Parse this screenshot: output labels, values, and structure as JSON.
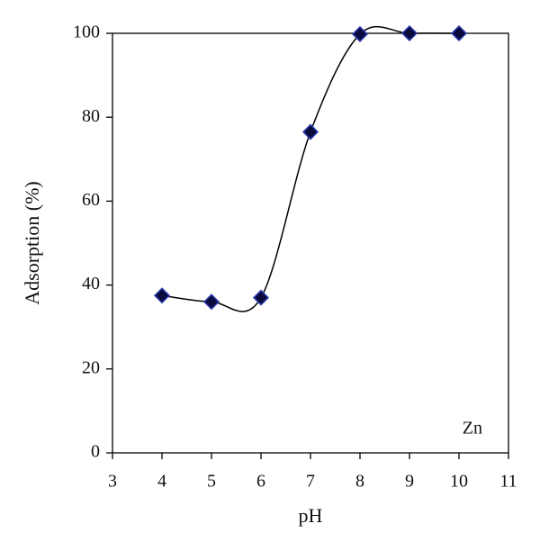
{
  "chart_data": {
    "type": "scatter",
    "x_label": "pH",
    "y_label": "Adsorption (%)",
    "annotation": "Zn",
    "x": [
      4,
      5,
      6,
      7,
      8,
      9,
      10
    ],
    "series": [
      {
        "name": "Zn",
        "color": "#0a0a3c",
        "values": [
          37.5,
          36,
          37,
          76.5,
          99.8,
          100,
          100
        ]
      }
    ],
    "xlim": [
      3,
      11
    ],
    "xticks": [
      3,
      4,
      5,
      6,
      7,
      8,
      9,
      10,
      11
    ],
    "ylim": [
      0,
      100
    ],
    "yticks": [
      0,
      20,
      40,
      60,
      80,
      100
    ],
    "smooth_line": true,
    "grid": false
  }
}
